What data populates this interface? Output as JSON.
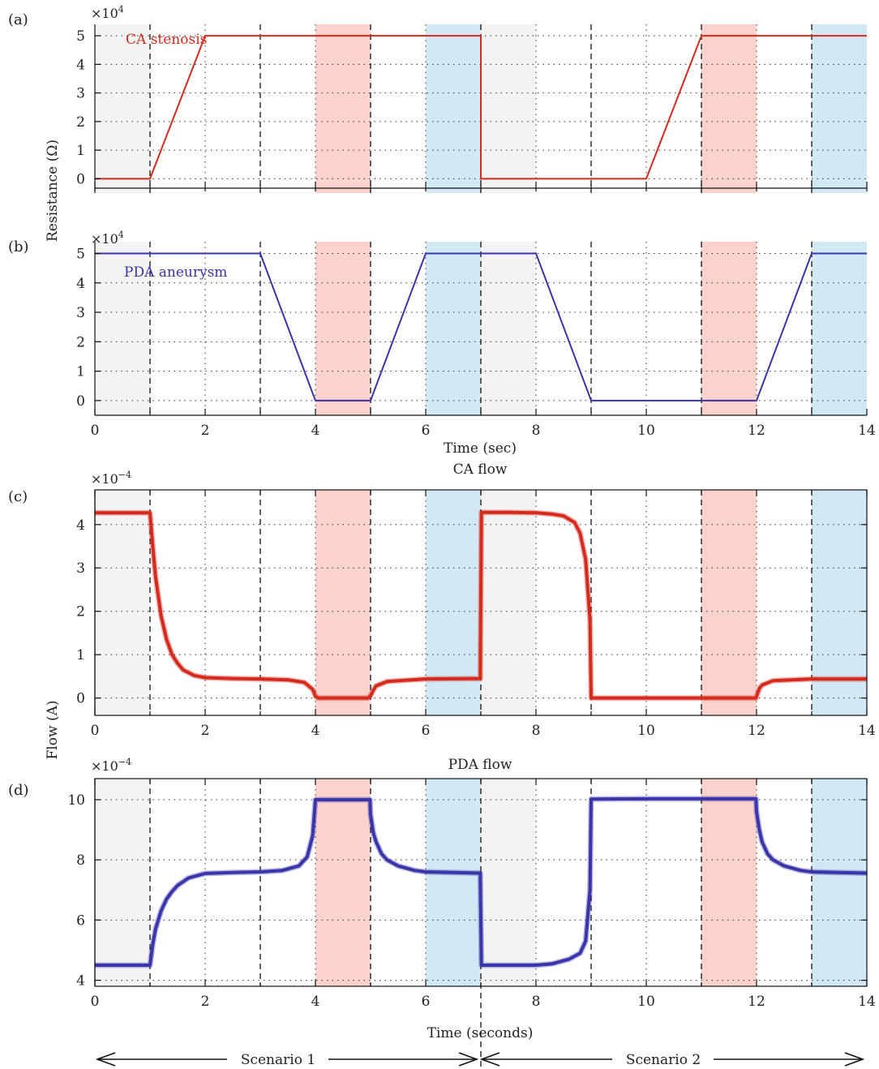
{
  "figure": {
    "panel_labels": [
      "(a)",
      "(b)",
      "(c)",
      "(d)"
    ],
    "y_labels": {
      "resistance": "Resistance (Ω)",
      "flow": "Flow (A)"
    },
    "x_labels": {
      "upper": "Time (sec)",
      "lower": "Time (seconds)"
    },
    "titles": {
      "c": "CA flow",
      "d": "PDA flow"
    },
    "exponents": {
      "a": {
        "base": "×10",
        "sup": "4"
      },
      "b": {
        "base": "×10",
        "sup": "4"
      },
      "c": {
        "base": "×10",
        "sup": "−4"
      },
      "d": {
        "base": "×10",
        "sup": "−4"
      }
    },
    "scenarios": [
      {
        "label": "Scenario 1",
        "x_range": [
          0,
          7
        ]
      },
      {
        "label": "Scenario 2",
        "x_range": [
          7,
          14
        ]
      }
    ],
    "colors": {
      "ca": "#d42b1e",
      "pda": "#3a35a8",
      "band_gray": "#f3f3f3",
      "band_red": "#fbd2cc",
      "band_blue": "#d3e8f5",
      "dashed": "#111111",
      "grid": "#333333"
    }
  },
  "chart_data": [
    {
      "id": "a",
      "type": "line",
      "ylabel": "Resistance (Ω)",
      "xlim": [
        0,
        14
      ],
      "ylim": [
        -0.5,
        5.4
      ],
      "yticks": [
        0,
        1,
        2,
        3,
        4,
        5
      ],
      "xticks": [],
      "grid": true,
      "bands": [
        {
          "x": [
            0,
            1
          ],
          "color": "gray"
        },
        {
          "x": [
            4,
            5
          ],
          "color": "red"
        },
        {
          "x": [
            6,
            7
          ],
          "color": "blue"
        },
        {
          "x": [
            7,
            8
          ],
          "color": "gray"
        },
        {
          "x": [
            11,
            12
          ],
          "color": "red"
        },
        {
          "x": [
            13,
            14
          ],
          "color": "blue"
        }
      ],
      "dashed_lines": [
        1,
        3,
        5,
        7,
        9,
        11,
        13
      ],
      "series": [
        {
          "name": "CA stenosis",
          "color_key": "ca",
          "x": [
            0,
            1,
            2,
            7,
            7,
            10,
            11,
            14
          ],
          "y": [
            0,
            0,
            5,
            5,
            0,
            0,
            5,
            5
          ]
        }
      ]
    },
    {
      "id": "b",
      "type": "line",
      "ylabel": "",
      "xlim": [
        0,
        14
      ],
      "ylim": [
        -0.5,
        5.4
      ],
      "yticks": [
        0,
        1,
        2,
        3,
        4,
        5
      ],
      "xticks": [
        0,
        2,
        4,
        6,
        8,
        10,
        12,
        14
      ],
      "grid": true,
      "bands": [
        {
          "x": [
            0,
            1
          ],
          "color": "gray"
        },
        {
          "x": [
            4,
            5
          ],
          "color": "red"
        },
        {
          "x": [
            6,
            7
          ],
          "color": "blue"
        },
        {
          "x": [
            7,
            8
          ],
          "color": "gray"
        },
        {
          "x": [
            11,
            12
          ],
          "color": "red"
        },
        {
          "x": [
            13,
            14
          ],
          "color": "blue"
        }
      ],
      "dashed_lines": [
        1,
        3,
        5,
        7,
        9,
        11,
        13
      ],
      "series": [
        {
          "name": "PDA aneurysm",
          "color_key": "pda",
          "x": [
            0,
            3,
            4,
            5,
            6,
            8,
            9,
            12,
            13,
            14
          ],
          "y": [
            5,
            5,
            0,
            0,
            5,
            5,
            0,
            0,
            5,
            5
          ]
        }
      ]
    },
    {
      "id": "c",
      "type": "line",
      "title": "CA flow",
      "ylabel": "Flow (A)",
      "xlim": [
        0,
        14
      ],
      "ylim": [
        -0.4,
        4.8
      ],
      "yticks": [
        0,
        1,
        2,
        3,
        4
      ],
      "xticks": [
        0,
        2,
        4,
        6,
        8,
        10,
        12,
        14
      ],
      "grid": true,
      "bands": [
        {
          "x": [
            0,
            1
          ],
          "color": "gray"
        },
        {
          "x": [
            4,
            5
          ],
          "color": "red"
        },
        {
          "x": [
            6,
            7
          ],
          "color": "blue"
        },
        {
          "x": [
            7,
            8
          ],
          "color": "gray"
        },
        {
          "x": [
            11,
            12
          ],
          "color": "red"
        },
        {
          "x": [
            13,
            14
          ],
          "color": "blue"
        }
      ],
      "dashed_lines": [
        1,
        3,
        5,
        7,
        9,
        11,
        13
      ],
      "series": [
        {
          "name": "",
          "color_key": "ca",
          "x": [
            0,
            1,
            1.05,
            1.1,
            1.2,
            1.3,
            1.4,
            1.5,
            1.6,
            1.8,
            2,
            2.5,
            3,
            3.5,
            3.8,
            3.95,
            4,
            4.05,
            4.1,
            4.3,
            4.95,
            5,
            5.05,
            5.1,
            5.3,
            6,
            6.99,
            7.01,
            7.5,
            8,
            8.3,
            8.5,
            8.7,
            8.8,
            8.9,
            8.98,
            9,
            9.5,
            10,
            11,
            11.99,
            12,
            12.05,
            12.1,
            12.3,
            13,
            14
          ],
          "y": [
            4.27,
            4.27,
            3.5,
            2.8,
            1.9,
            1.35,
            1.0,
            0.8,
            0.65,
            0.52,
            0.47,
            0.45,
            0.44,
            0.42,
            0.36,
            0.2,
            0.04,
            0.0,
            0.0,
            0.0,
            0.0,
            0.05,
            0.18,
            0.28,
            0.38,
            0.44,
            0.45,
            4.28,
            4.28,
            4.27,
            4.24,
            4.2,
            4.05,
            3.8,
            3.2,
            1.8,
            0.0,
            0.0,
            0.0,
            0.0,
            0.0,
            0.04,
            0.22,
            0.3,
            0.4,
            0.44,
            0.44
          ]
        }
      ]
    },
    {
      "id": "d",
      "type": "line",
      "title": "PDA flow",
      "ylabel": "",
      "xlim": [
        0,
        14
      ],
      "ylim": [
        3.8,
        10.7
      ],
      "yticks": [
        4,
        6,
        8,
        10
      ],
      "xticks": [
        0,
        2,
        4,
        6,
        8,
        10,
        12,
        14
      ],
      "grid": true,
      "bands": [
        {
          "x": [
            0,
            1
          ],
          "color": "gray"
        },
        {
          "x": [
            4,
            5
          ],
          "color": "red"
        },
        {
          "x": [
            6,
            7
          ],
          "color": "blue"
        },
        {
          "x": [
            7,
            8
          ],
          "color": "gray"
        },
        {
          "x": [
            11,
            12
          ],
          "color": "red"
        },
        {
          "x": [
            13,
            14
          ],
          "color": "blue"
        }
      ],
      "dashed_lines": [
        1,
        3,
        5,
        7,
        9,
        11,
        13
      ],
      "series": [
        {
          "name": "",
          "color_key": "pda",
          "x": [
            0,
            1,
            1.05,
            1.1,
            1.2,
            1.3,
            1.4,
            1.5,
            1.7,
            2,
            2.5,
            3,
            3.4,
            3.7,
            3.85,
            3.95,
            4,
            4.99,
            5,
            5.05,
            5.1,
            5.2,
            5.3,
            5.5,
            5.8,
            6,
            6.99,
            7.01,
            8,
            8.3,
            8.6,
            8.8,
            8.9,
            8.98,
            9,
            10,
            11,
            11.99,
            12,
            12.05,
            12.1,
            12.2,
            12.3,
            12.5,
            12.8,
            13,
            14
          ],
          "y": [
            4.5,
            4.5,
            5.2,
            5.7,
            6.3,
            6.7,
            6.95,
            7.15,
            7.4,
            7.55,
            7.58,
            7.6,
            7.65,
            7.8,
            8.1,
            8.8,
            10.0,
            10.0,
            9.5,
            8.9,
            8.6,
            8.2,
            8.0,
            7.8,
            7.65,
            7.6,
            7.56,
            4.5,
            4.5,
            4.55,
            4.7,
            4.9,
            5.3,
            7.0,
            10.02,
            10.03,
            10.03,
            10.03,
            9.6,
            9.0,
            8.6,
            8.2,
            8.0,
            7.8,
            7.65,
            7.6,
            7.56
          ]
        }
      ]
    }
  ]
}
